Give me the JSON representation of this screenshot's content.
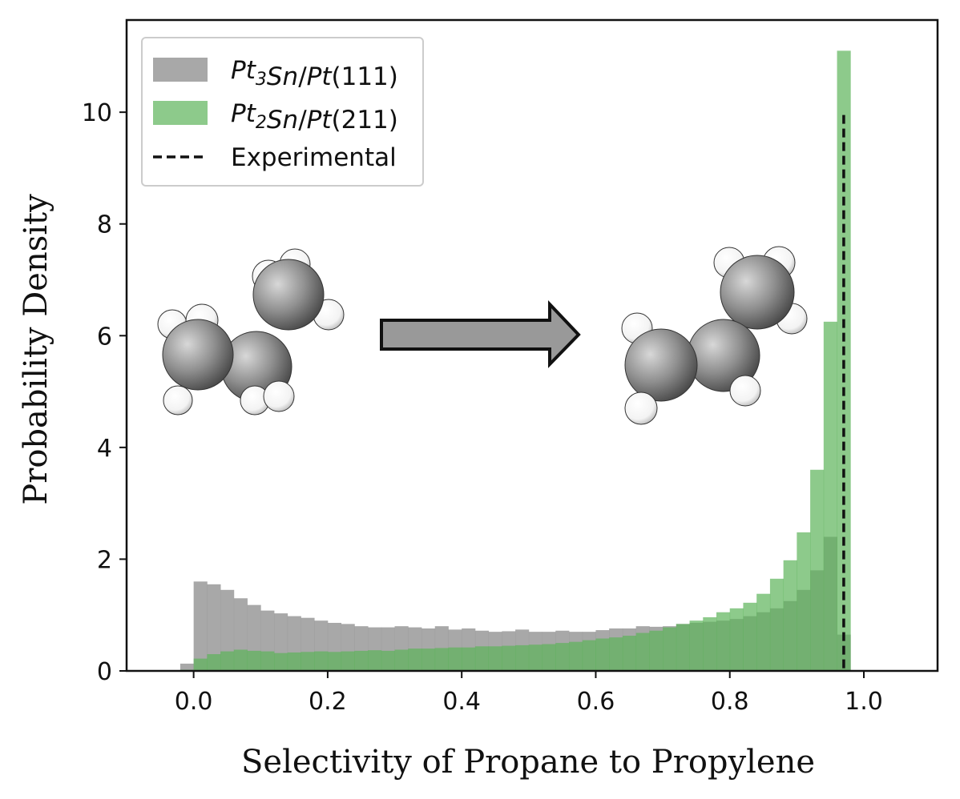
{
  "chart_data": {
    "type": "bar",
    "xlabel": "Selectivity of Propane to Propylene",
    "ylabel": "Probability Density",
    "xlim": [
      -0.1,
      1.11
    ],
    "ylim": [
      0,
      11.65
    ],
    "xticks": [
      0.0,
      0.2,
      0.4,
      0.6,
      0.8,
      1.0
    ],
    "xtick_labels": [
      "0.0",
      "0.2",
      "0.4",
      "0.6",
      "0.8",
      "1.0"
    ],
    "yticks": [
      0,
      2,
      4,
      6,
      8,
      10
    ],
    "ytick_labels": [
      "0",
      "2",
      "4",
      "6",
      "8",
      "10"
    ],
    "grid": false,
    "legend_position": "top-left",
    "bin_start": -0.02,
    "bin_width": 0.02,
    "series": [
      {
        "name_parts": [
          [
            "Pt",
            "i"
          ],
          [
            "3",
            "sub-i"
          ],
          [
            "Sn",
            "i"
          ],
          [
            "/",
            "n"
          ],
          [
            "Pt",
            "i"
          ],
          [
            "(111)",
            "n"
          ]
        ],
        "color": "#999999",
        "opacity": 0.85,
        "values": [
          0.13,
          1.6,
          1.55,
          1.45,
          1.3,
          1.18,
          1.08,
          1.03,
          0.98,
          0.95,
          0.9,
          0.86,
          0.84,
          0.8,
          0.78,
          0.78,
          0.8,
          0.78,
          0.76,
          0.8,
          0.74,
          0.76,
          0.72,
          0.7,
          0.71,
          0.74,
          0.7,
          0.7,
          0.72,
          0.7,
          0.7,
          0.73,
          0.76,
          0.76,
          0.8,
          0.79,
          0.8,
          0.84,
          0.86,
          0.88,
          0.9,
          0.93,
          0.98,
          1.05,
          1.12,
          1.25,
          1.45,
          1.8,
          2.4,
          0.65
        ]
      },
      {
        "name_parts": [
          [
            "Pt",
            "i"
          ],
          [
            "2",
            "sub-i"
          ],
          [
            "Sn",
            "i"
          ],
          [
            "/",
            "n"
          ],
          [
            "Pt",
            "i"
          ],
          [
            "(211)",
            "n"
          ]
        ],
        "color": "#5cb45a",
        "opacity": 0.7,
        "values": [
          0.02,
          0.22,
          0.3,
          0.35,
          0.38,
          0.36,
          0.35,
          0.32,
          0.33,
          0.34,
          0.35,
          0.34,
          0.35,
          0.36,
          0.37,
          0.36,
          0.38,
          0.4,
          0.4,
          0.41,
          0.42,
          0.42,
          0.44,
          0.44,
          0.45,
          0.46,
          0.47,
          0.48,
          0.5,
          0.52,
          0.55,
          0.58,
          0.6,
          0.63,
          0.68,
          0.72,
          0.78,
          0.84,
          0.9,
          0.96,
          1.05,
          1.12,
          1.22,
          1.38,
          1.65,
          1.98,
          2.48,
          3.6,
          6.25,
          11.1
        ]
      }
    ],
    "reference_line": {
      "name": "Experimental",
      "x": 0.97,
      "y_top": 9.95,
      "color": "#111111",
      "style": "dashed"
    }
  },
  "annotations": {
    "arrow_fill": "#999999",
    "molecule_color": "#8a8a8a",
    "hydrogen_color": "#ffffff"
  }
}
